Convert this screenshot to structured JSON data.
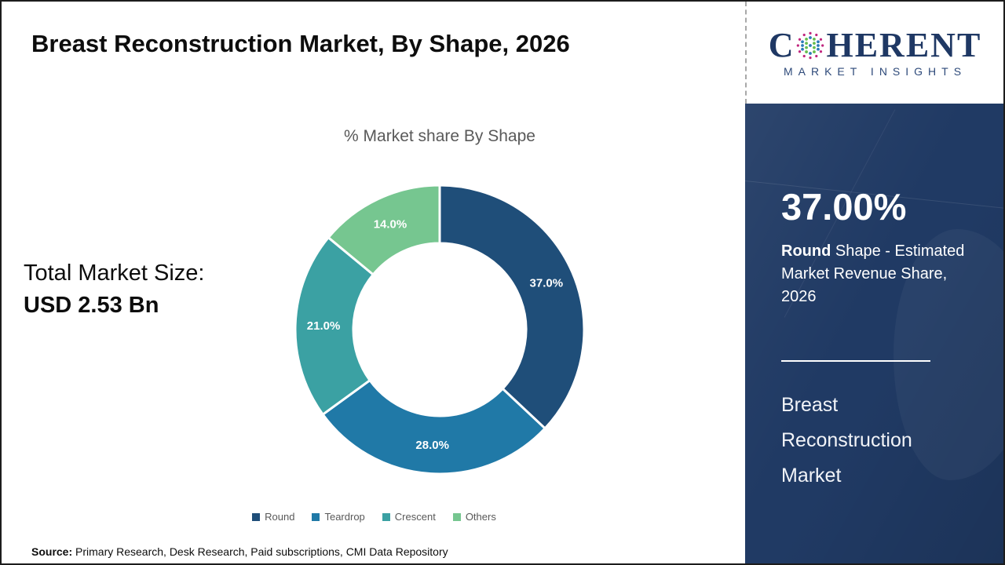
{
  "page": {
    "title": "Breast Reconstruction Market, By Shape, 2026",
    "source_label": "Source:",
    "source_text": " Primary Research, Desk Research, Paid subscriptions, CMI Data Repository"
  },
  "logo": {
    "brand_left": "C",
    "brand_right": "HERENT",
    "tagline": "MARKET INSIGHTS",
    "brand_color": "#1f3864"
  },
  "left_panel": {
    "total_label": "Total Market Size:",
    "total_value": "USD 2.53 Bn"
  },
  "chart_data": {
    "type": "pie",
    "subtype": "donut",
    "title": "% Market share By Shape",
    "categories": [
      "Round",
      "Teardrop",
      "Crescent",
      "Others"
    ],
    "values": [
      37.0,
      28.0,
      21.0,
      14.0
    ],
    "unit": "%",
    "colors": [
      "#1f4e79",
      "#2079a7",
      "#3ba1a3",
      "#76c690"
    ],
    "start_angle_deg": 0,
    "direction": "clockwise",
    "donut_hole_ratio": 0.6,
    "label_format": "{value:.1f}%",
    "label_color": "#ffffff",
    "legend_position": "bottom"
  },
  "sidebar": {
    "highlight_value": "37.00%",
    "highlight_term": "Round",
    "highlight_desc": " Shape - Estimated Market Revenue Share, 2026",
    "market_name": "Breast Reconstruction Market",
    "panel_color": "#203a64"
  }
}
